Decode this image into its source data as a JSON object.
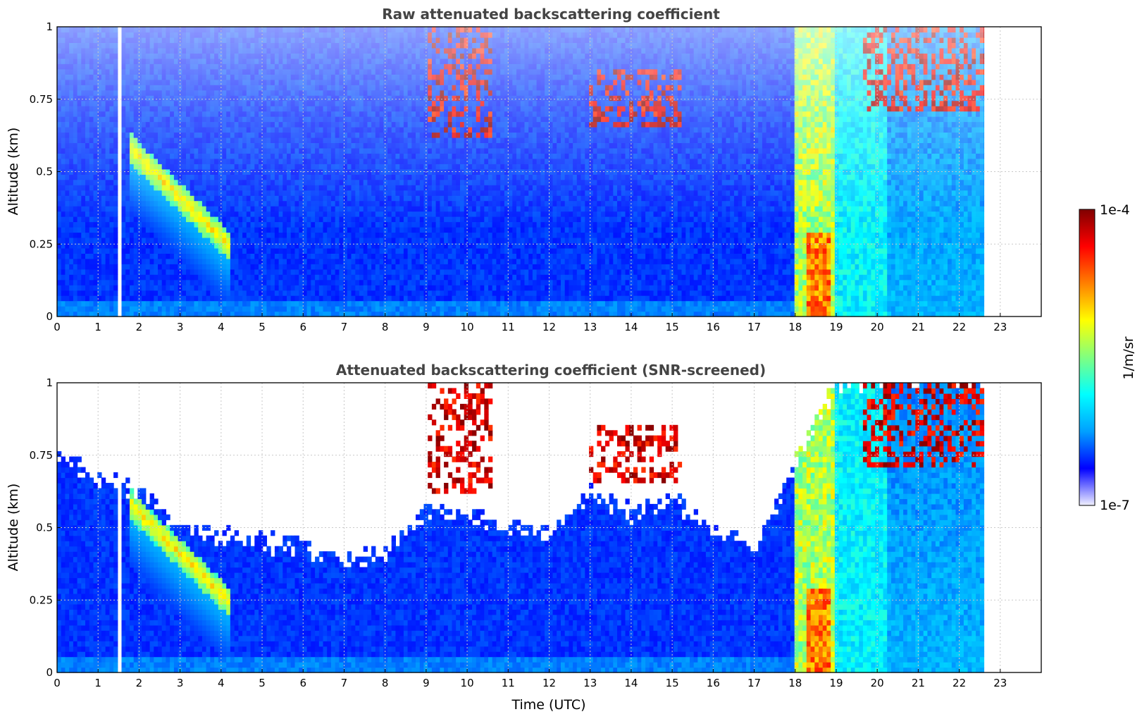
{
  "colors": {
    "background": "#ffffff",
    "title": "#444444",
    "grid": "#c8c8c8",
    "colormap": [
      "#f0f0ff",
      "#0000ff",
      "#00a0ff",
      "#00ffff",
      "#80ff80",
      "#ffff00",
      "#ff8000",
      "#ff0000",
      "#800000"
    ]
  },
  "colorbar": {
    "label": "1/m/sr",
    "max_label": "1e-4",
    "min_label": "1e-7",
    "range": [
      1e-07,
      0.0001
    ],
    "scale": "log"
  },
  "chart_data": [
    {
      "type": "heatmap",
      "title": "Raw attenuated backscattering coefficient",
      "xlabel": "",
      "ylabel": "Altitude (km)",
      "xlim": [
        0,
        24
      ],
      "ylim": [
        0,
        1
      ],
      "x_ticks": [
        "0",
        "1",
        "2",
        "3",
        "4",
        "5",
        "6",
        "7",
        "8",
        "9",
        "10",
        "11",
        "12",
        "13",
        "14",
        "15",
        "16",
        "17",
        "18",
        "19",
        "20",
        "21",
        "22",
        "23"
      ],
      "y_ticks": [
        "0",
        "0.25",
        "0.5",
        "0.75",
        "1"
      ],
      "grid": true,
      "data_gap_hours": [
        1.45,
        1.55
      ],
      "data_end_hour": 22.6,
      "features": [
        {
          "name": "descending aerosol layer",
          "time_start": 2.0,
          "time_end": 3.6,
          "alt_start": 0.55,
          "alt_end": 0.25
        },
        {
          "name": "clouds",
          "time_start": 9.0,
          "time_end": 10.6,
          "alt_bottom": 0.6,
          "alt_top": 1.0
        },
        {
          "name": "clouds",
          "time_start": 13.0,
          "time_end": 15.2,
          "alt_bottom": 0.65,
          "alt_top": 0.85
        },
        {
          "name": "precipitation/fog",
          "time_start": 18.0,
          "time_end": 19.0,
          "alt_bottom": 0.0,
          "alt_top": 1.0
        },
        {
          "name": "clouds",
          "time_start": 19.7,
          "time_end": 22.6,
          "alt_bottom": 0.65,
          "alt_top": 1.0
        }
      ]
    },
    {
      "type": "heatmap",
      "title": "Attenuated backscattering coefficient (SNR-screened)",
      "xlabel": "Time (UTC)",
      "ylabel": "Altitude (km)",
      "xlim": [
        0,
        24
      ],
      "ylim": [
        0,
        1
      ],
      "x_ticks": [
        "0",
        "1",
        "2",
        "3",
        "4",
        "5",
        "6",
        "7",
        "8",
        "9",
        "10",
        "11",
        "12",
        "13",
        "14",
        "15",
        "16",
        "17",
        "18",
        "19",
        "20",
        "21",
        "22",
        "23"
      ],
      "y_ticks": [
        "0",
        "0.25",
        "0.5",
        "0.75",
        "1"
      ],
      "grid": true,
      "data_gap_hours": [
        1.45,
        1.55
      ],
      "data_end_hour": 22.6,
      "screened_boundary_km": [
        [
          0,
          0.75
        ],
        [
          1,
          0.68
        ],
        [
          2,
          0.62
        ],
        [
          3,
          0.5
        ],
        [
          4,
          0.47
        ],
        [
          5,
          0.45
        ],
        [
          6,
          0.44
        ],
        [
          7,
          0.38
        ],
        [
          8,
          0.42
        ],
        [
          9,
          0.55
        ],
        [
          10,
          0.55
        ],
        [
          11,
          0.5
        ],
        [
          12,
          0.48
        ],
        [
          13,
          0.62
        ],
        [
          14,
          0.55
        ],
        [
          15,
          0.6
        ],
        [
          16,
          0.5
        ],
        [
          17,
          0.42
        ],
        [
          18,
          0.72
        ],
        [
          19,
          1.0
        ],
        [
          20,
          1.0
        ],
        [
          21,
          1.0
        ],
        [
          22,
          1.0
        ],
        [
          22.6,
          1.0
        ]
      ]
    }
  ]
}
